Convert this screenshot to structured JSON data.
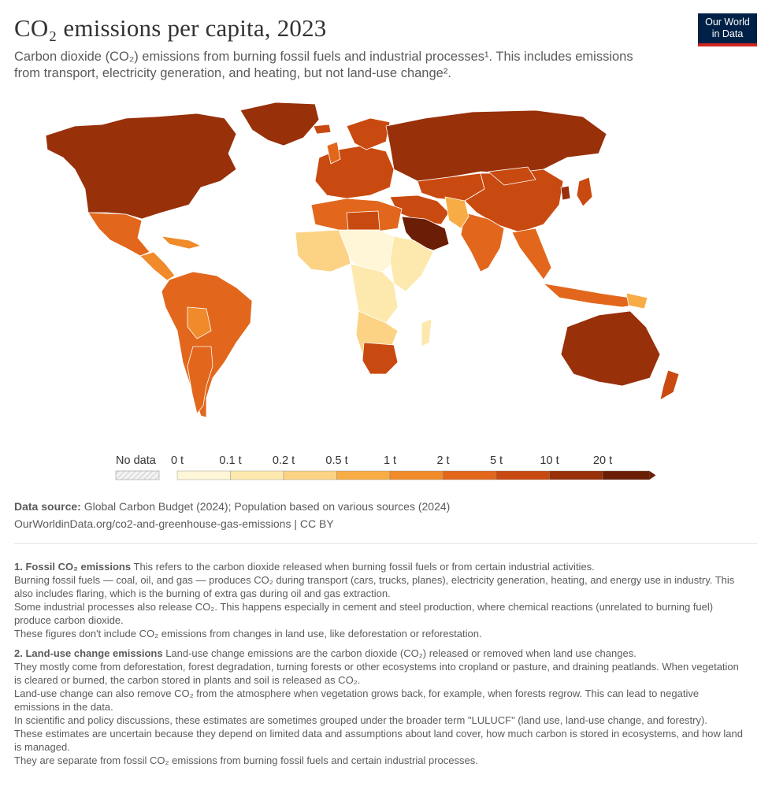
{
  "header": {
    "title": "CO₂ emissions per capita, 2023",
    "subtitle": "Carbon dioxide (CO₂) emissions from burning fossil fuels and industrial processes¹. This includes emissions from transport, electricity generation, and heating, but not land-use change².",
    "logo_line1": "Our World",
    "logo_line2": "in Data"
  },
  "map": {
    "year": "2023",
    "variable": "CO₂ emissions per capita",
    "regions": [
      {
        "name": "North America",
        "value_range": "10-20 t"
      },
      {
        "name": "Mexico",
        "value_range": "2-5 t"
      },
      {
        "name": "Central America",
        "value_range": "1-2 t"
      },
      {
        "name": "South America",
        "value_range": "2-5 t"
      },
      {
        "name": "Europe",
        "value_range": "5-10 t"
      },
      {
        "name": "Russia",
        "value_range": "10-20 t"
      },
      {
        "name": "Saudi Arabia",
        "value_range": "20+ t"
      },
      {
        "name": "China",
        "value_range": "5-10 t"
      },
      {
        "name": "India",
        "value_range": "2-5 t"
      },
      {
        "name": "Sahel Africa",
        "value_range": "0-0.1 t"
      },
      {
        "name": "South Africa",
        "value_range": "5-10 t"
      },
      {
        "name": "Australia",
        "value_range": "10-20 t"
      },
      {
        "name": "Greenland",
        "value_range": "10-20 t"
      }
    ]
  },
  "legend": {
    "no_data_label": "No data",
    "bins": [
      "0 t",
      "0.1 t",
      "0.2 t",
      "0.5 t",
      "1 t",
      "2 t",
      "5 t",
      "10 t",
      "20 t"
    ],
    "colors": [
      "#fef6d6",
      "#fde9ad",
      "#fcd384",
      "#f8ac45",
      "#f08a2a",
      "#e2671c",
      "#c94a10",
      "#98300a",
      "#6b1e06"
    ],
    "no_data_color": "#e6e6e6"
  },
  "sources": {
    "label": "Data source:",
    "text": "Global Carbon Budget (2024); Population based on various sources (2024)",
    "url_license": "OurWorldinData.org/co2-and-greenhouse-gas-emissions | CC BY"
  },
  "notes": [
    {
      "title": "1. Fossil CO₂ emissions",
      "lines": [
        "This refers to the carbon dioxide released when burning fossil fuels or from certain industrial activities.",
        "Burning fossil fuels — coal, oil, and gas — produces CO₂ during transport (cars, trucks, planes), electricity generation, heating, and energy use in industry. This also includes flaring, which is the burning of extra gas during oil and gas extraction.",
        "Some industrial processes also release CO₂. This happens especially in cement and steel production, where chemical reactions (unrelated to burning fuel) produce carbon dioxide.",
        "These figures don't include CO₂ emissions from changes in land use, like deforestation or reforestation."
      ]
    },
    {
      "title": "2. Land-use change emissions",
      "lines": [
        "Land-use change emissions are the carbon dioxide (CO₂) released or removed when land use changes.",
        "They mostly come from deforestation, forest degradation, turning forests or other ecosystems into cropland or pasture, and draining peatlands. When vegetation is cleared or burned, the carbon stored in plants and soil is released as CO₂.",
        "Land-use change can also remove CO₂ from the atmosphere when vegetation grows back, for example, when forests regrow. This can lead to negative emissions in the data.",
        "In scientific and policy discussions, these estimates are sometimes grouped under the broader term \"LULUCF\" (land use, land-use change, and forestry).",
        "These estimates are uncertain because they depend on limited data and assumptions about land cover, how much carbon is stored in ecosystems, and how land is managed.",
        "They are separate from fossil CO₂ emissions from burning fossil fuels and certain industrial processes."
      ]
    }
  ]
}
